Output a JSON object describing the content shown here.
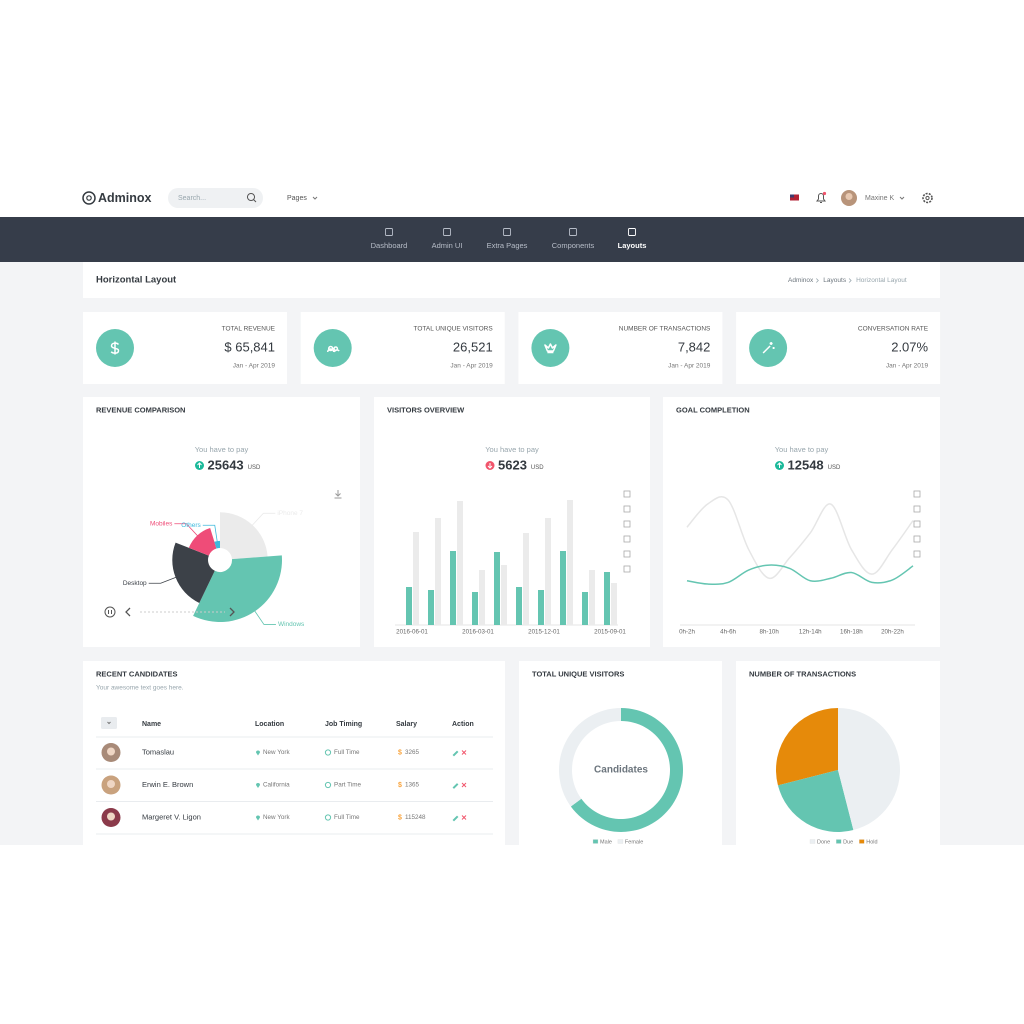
{
  "header": {
    "brand": "Adminox",
    "search_placeholder": "Search...",
    "menu": "Pages",
    "user": "Maxine K"
  },
  "nav": [
    "Dashboard",
    "Admin UI",
    "Extra Pages",
    "Components",
    "Layouts"
  ],
  "page_title": "Horizontal Layout",
  "breadcrumb": [
    "Adminox",
    "Layouts",
    "Horizontal Layout"
  ],
  "stats": [
    {
      "label": "TOTAL REVENUE",
      "value": "$ 65,841",
      "period": "Jan - Apr 2019"
    },
    {
      "label": "TOTAL UNIQUE VISITORS",
      "value": "26,521",
      "period": "Jan - Apr 2019"
    },
    {
      "label": "NUMBER OF TRANSACTIONS",
      "value": "7,842",
      "period": "Jan - Apr 2019"
    },
    {
      "label": "CONVERSATION RATE",
      "value": "2.07%",
      "period": "Jan - Apr 2019"
    }
  ],
  "chart_data": [
    {
      "type": "pie",
      "rose": true,
      "title": "REVENUE COMPARISON",
      "subtitle": "You have to pay",
      "amount": 25643,
      "unit": "USD",
      "trend": "up",
      "categories": [
        "iPhone 7",
        "Windows",
        "Desktop",
        "Mobiles",
        "Others"
      ],
      "values": [
        25,
        35,
        25,
        15,
        5
      ],
      "colors": [
        "#ebebeb",
        "#64c5b1",
        "#3c4148",
        "#ef4c78",
        "#3db9dc"
      ]
    },
    {
      "type": "bar",
      "title": "VISITORS OVERVIEW",
      "subtitle": "You have to pay",
      "amount": 5623,
      "unit": "USD",
      "trend": "down",
      "categories": [
        "2016-06-01",
        null,
        null,
        "2016-03-01",
        null,
        null,
        "2015-12-01",
        null,
        null,
        "2015-09-01"
      ],
      "series": [
        {
          "color": "#64c5b1",
          "values": [
            38,
            35,
            74,
            33,
            73,
            38,
            35,
            74,
            33,
            53
          ]
        },
        {
          "color": "#ebebeb",
          "values": [
            93,
            107,
            124,
            55,
            60,
            92,
            107,
            125,
            55,
            42
          ]
        }
      ]
    },
    {
      "type": "line",
      "title": "GOAL COMPLETION",
      "subtitle": "You have to pay",
      "amount": 12548,
      "unit": "USD",
      "trend": "up",
      "categories": [
        "0h-2h",
        null,
        "4h-6h",
        null,
        "8h-10h",
        null,
        "12h-14h",
        null,
        "16h-18h",
        null,
        "20h-22h",
        null
      ],
      "series": [
        {
          "color": "#e6e6e6",
          "values": [
            92,
            120,
            125,
            65,
            30,
            55,
            85,
            120,
            65,
            35,
            65,
            100
          ]
        },
        {
          "color": "#64c5b1",
          "values": [
            27,
            23,
            25,
            40,
            46,
            42,
            27,
            30,
            37,
            25,
            28,
            45
          ]
        }
      ]
    },
    {
      "type": "doughnut",
      "title": "TOTAL UNIQUE VISITORS",
      "center_label": "Candidates",
      "categories": [
        "Male",
        "Female"
      ],
      "values": [
        65,
        35
      ],
      "colors": [
        "#64c5b1",
        "#ebeff2"
      ]
    },
    {
      "type": "pie",
      "title": "NUMBER OF TRANSACTIONS",
      "direction": "counterclockwise",
      "categories": [
        "Done",
        "Due",
        "Hold"
      ],
      "values": [
        46,
        25,
        29
      ],
      "colors": [
        "#ebeff2",
        "#64c5b1",
        "#e68a0a"
      ]
    }
  ],
  "table": {
    "title": "RECENT CANDIDATES",
    "subtitle": "Your awesome text goes here.",
    "columns": [
      "Name",
      "Location",
      "Job Timing",
      "Salary",
      "Action"
    ],
    "currency": "$",
    "rows": [
      [
        "Tomaslau",
        "New York",
        "Full Time",
        3265
      ],
      [
        "Erwin E. Brown",
        "California",
        "Part Time",
        1365
      ],
      [
        "Margeret V. Ligon",
        "New York",
        "Full Time",
        115248
      ]
    ]
  }
}
